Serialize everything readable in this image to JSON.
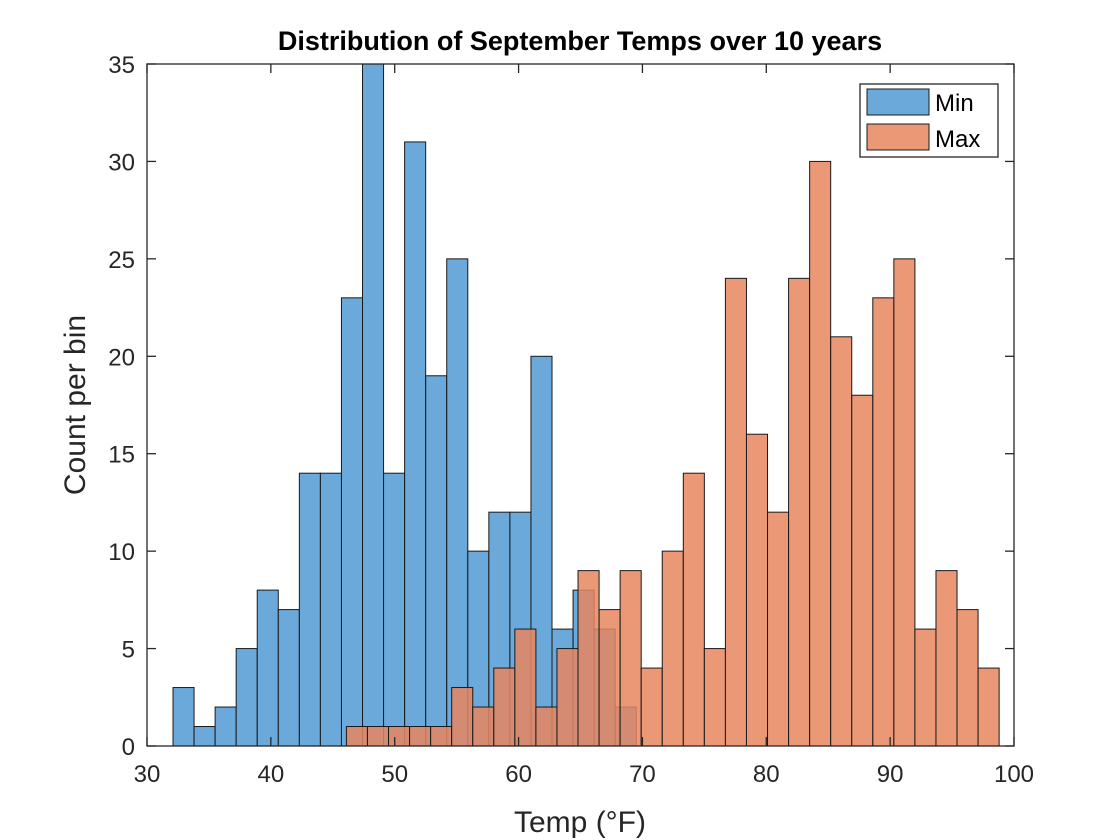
{
  "chart_data": {
    "type": "bar",
    "title": "Distribution of September Temps over 10 years",
    "xlabel": "Temp (°F)",
    "ylabel": "Count per bin",
    "xlim": [
      30,
      100
    ],
    "ylim": [
      0,
      35
    ],
    "xticks": [
      30,
      40,
      50,
      60,
      70,
      80,
      90,
      100
    ],
    "yticks": [
      0,
      5,
      10,
      15,
      20,
      25,
      30,
      35
    ],
    "bin_width": 1.7,
    "grid": false,
    "legend_position": "top-right",
    "series": [
      {
        "name": "Min",
        "color": "#5aa0d6",
        "opacity": 0.9,
        "bins": [
          {
            "x0": 32.1,
            "count": 3
          },
          {
            "x0": 33.8,
            "count": 1
          },
          {
            "x0": 35.5,
            "count": 2
          },
          {
            "x0": 37.2,
            "count": 5
          },
          {
            "x0": 38.9,
            "count": 8
          },
          {
            "x0": 40.6,
            "count": 7
          },
          {
            "x0": 42.3,
            "count": 14
          },
          {
            "x0": 44.0,
            "count": 14
          },
          {
            "x0": 45.7,
            "count": 23
          },
          {
            "x0": 47.4,
            "count": 35
          },
          {
            "x0": 49.1,
            "count": 14
          },
          {
            "x0": 50.8,
            "count": 31
          },
          {
            "x0": 52.5,
            "count": 19
          },
          {
            "x0": 54.2,
            "count": 25
          },
          {
            "x0": 55.9,
            "count": 10
          },
          {
            "x0": 57.6,
            "count": 12
          },
          {
            "x0": 59.3,
            "count": 12
          },
          {
            "x0": 61.0,
            "count": 20
          },
          {
            "x0": 62.7,
            "count": 6
          },
          {
            "x0": 64.4,
            "count": 8
          },
          {
            "x0": 66.1,
            "count": 6
          },
          {
            "x0": 67.8,
            "count": 2
          }
        ]
      },
      {
        "name": "Max",
        "color": "#e8865f",
        "opacity": 0.85,
        "bins": [
          {
            "x0": 46.1,
            "count": 1
          },
          {
            "x0": 47.8,
            "count": 1
          },
          {
            "x0": 49.5,
            "count": 1
          },
          {
            "x0": 51.2,
            "count": 1
          },
          {
            "x0": 52.9,
            "count": 1
          },
          {
            "x0": 54.6,
            "count": 3
          },
          {
            "x0": 56.3,
            "count": 2
          },
          {
            "x0": 58.0,
            "count": 4
          },
          {
            "x0": 59.7,
            "count": 6
          },
          {
            "x0": 61.4,
            "count": 2
          },
          {
            "x0": 63.1,
            "count": 5
          },
          {
            "x0": 64.8,
            "count": 9
          },
          {
            "x0": 66.5,
            "count": 7
          },
          {
            "x0": 68.2,
            "count": 9
          },
          {
            "x0": 69.9,
            "count": 4
          },
          {
            "x0": 71.6,
            "count": 10
          },
          {
            "x0": 73.3,
            "count": 14
          },
          {
            "x0": 75.0,
            "count": 5
          },
          {
            "x0": 76.7,
            "count": 24
          },
          {
            "x0": 78.4,
            "count": 16
          },
          {
            "x0": 80.1,
            "count": 12
          },
          {
            "x0": 81.8,
            "count": 24
          },
          {
            "x0": 83.5,
            "count": 30
          },
          {
            "x0": 85.2,
            "count": 21
          },
          {
            "x0": 86.9,
            "count": 18
          },
          {
            "x0": 88.6,
            "count": 23
          },
          {
            "x0": 90.3,
            "count": 25
          },
          {
            "x0": 92.0,
            "count": 6
          },
          {
            "x0": 93.7,
            "count": 9
          },
          {
            "x0": 95.4,
            "count": 7
          },
          {
            "x0": 97.1,
            "count": 4
          }
        ]
      }
    ]
  }
}
